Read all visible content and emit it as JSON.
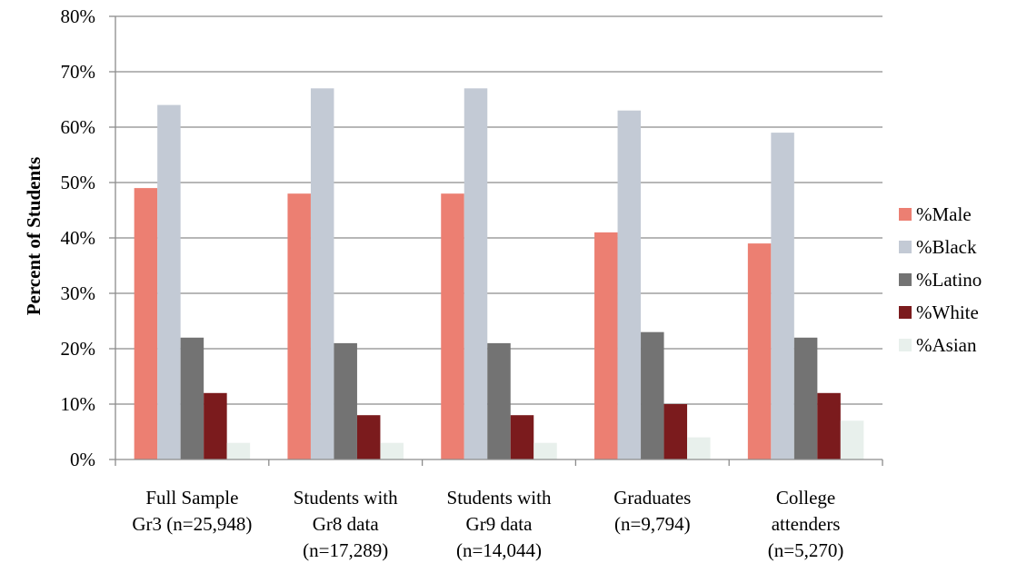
{
  "chart_data": {
    "type": "bar",
    "title": "",
    "xlabel": "",
    "ylabel": "Percent of Students",
    "ylim": [
      0,
      80
    ],
    "yticks": [
      "0%",
      "10%",
      "20%",
      "30%",
      "40%",
      "50%",
      "60%",
      "70%",
      "80%"
    ],
    "grid": true,
    "legend_position": "right",
    "categories": [
      [
        "Full Sample",
        "Gr3 (n=25,948)"
      ],
      [
        "Students with",
        "Gr8 data",
        "(n=17,289)"
      ],
      [
        "Students with",
        "Gr9 data",
        "(n=14,044)"
      ],
      [
        "Graduates",
        "(n=9,794)"
      ],
      [
        "College",
        "attenders",
        "(n=5,270)"
      ]
    ],
    "series": [
      {
        "name": "%Male",
        "color": "#ec7f72",
        "values": [
          49,
          48,
          48,
          41,
          39
        ]
      },
      {
        "name": "%Black",
        "color": "#c3cad5",
        "values": [
          64,
          67,
          67,
          63,
          59
        ]
      },
      {
        "name": "%Latino",
        "color": "#737373",
        "values": [
          22,
          21,
          21,
          23,
          22
        ]
      },
      {
        "name": "%White",
        "color": "#7b1b1d",
        "values": [
          12,
          8,
          8,
          10,
          12
        ]
      },
      {
        "name": "%Asian",
        "color": "#e8f0ec",
        "values": [
          3,
          3,
          3,
          4,
          7
        ]
      }
    ]
  }
}
